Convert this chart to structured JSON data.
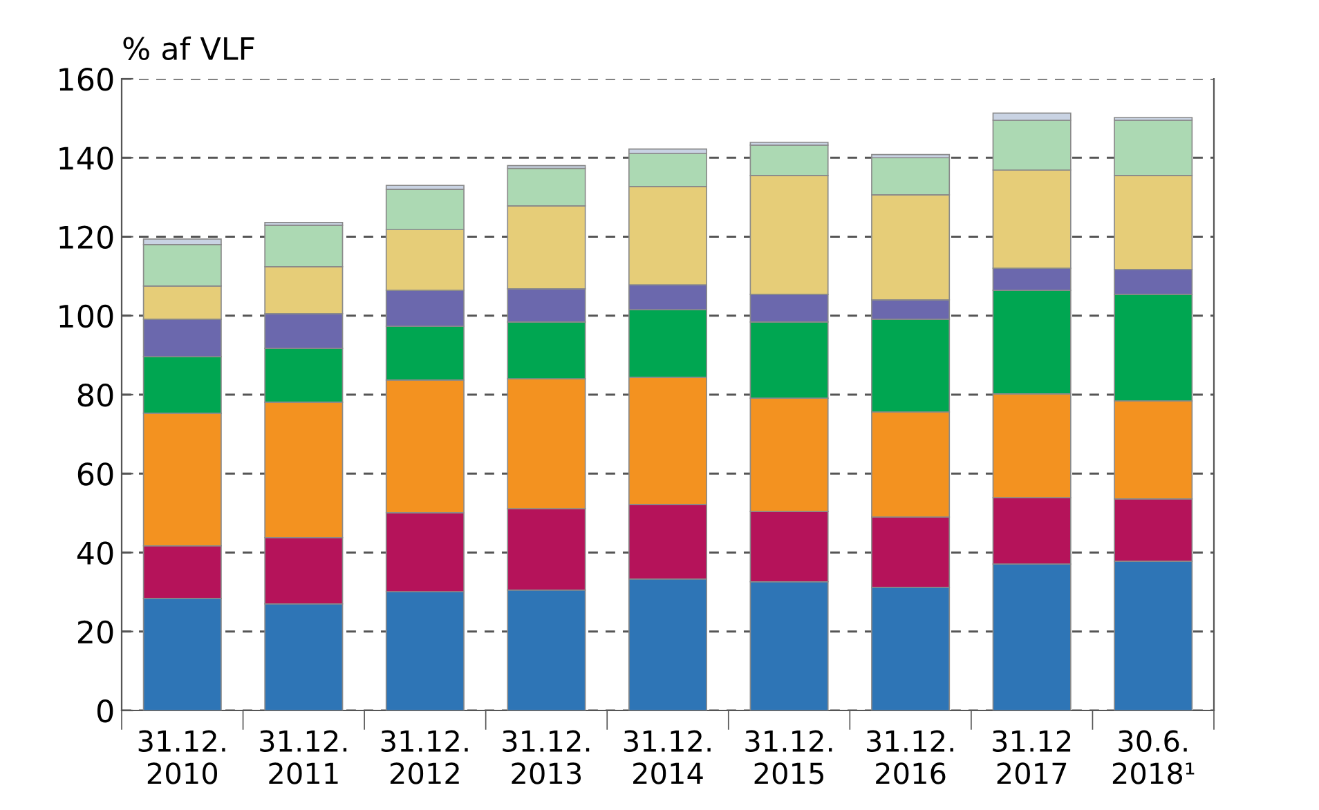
{
  "chart_data": {
    "type": "bar",
    "stacked": true,
    "ylabel": "% af VLF",
    "categories": [
      "31.12.\n2010",
      "31.12.\n2011",
      "31.12.\n2012",
      "31.12.\n2013",
      "31.12.\n2014",
      "31.12.\n2015",
      "31.12.\n2016",
      "31.12\n2017",
      "30.6.\n2018¹"
    ],
    "series": [
      {
        "color": "#2e75b6",
        "values": [
          28.4,
          27.0,
          30.1,
          30.5,
          33.3,
          32.6,
          31.2,
          37.1,
          37.8
        ]
      },
      {
        "color": "#b5135a",
        "values": [
          13.3,
          16.8,
          20.0,
          20.6,
          18.9,
          17.8,
          17.8,
          16.8,
          15.8
        ]
      },
      {
        "color": "#f39220",
        "values": [
          33.6,
          34.3,
          33.6,
          32.9,
          32.2,
          28.7,
          26.6,
          26.3,
          24.8
        ]
      },
      {
        "color": "#00a651",
        "values": [
          14.3,
          13.6,
          13.6,
          14.4,
          17.1,
          19.3,
          23.5,
          26.2,
          27.0
        ]
      },
      {
        "color": "#6b68ad",
        "values": [
          9.5,
          8.8,
          9.1,
          8.4,
          6.3,
          7.0,
          4.9,
          5.6,
          6.3
        ]
      },
      {
        "color": "#e6cd78",
        "values": [
          8.4,
          11.9,
          15.4,
          21.0,
          24.9,
          30.1,
          26.6,
          24.9,
          23.8
        ]
      },
      {
        "color": "#acd9b3",
        "values": [
          10.5,
          10.5,
          10.2,
          9.5,
          8.4,
          7.7,
          9.4,
          12.6,
          14.0
        ]
      },
      {
        "color": "#c9d3e3",
        "values": [
          1.4,
          0.7,
          1.0,
          0.7,
          1.1,
          0.7,
          0.8,
          1.8,
          0.7
        ]
      }
    ],
    "ylim": [
      0,
      160
    ],
    "yticks": [
      0,
      20,
      40,
      60,
      80,
      100,
      120,
      140,
      160
    ],
    "grid": "y"
  }
}
